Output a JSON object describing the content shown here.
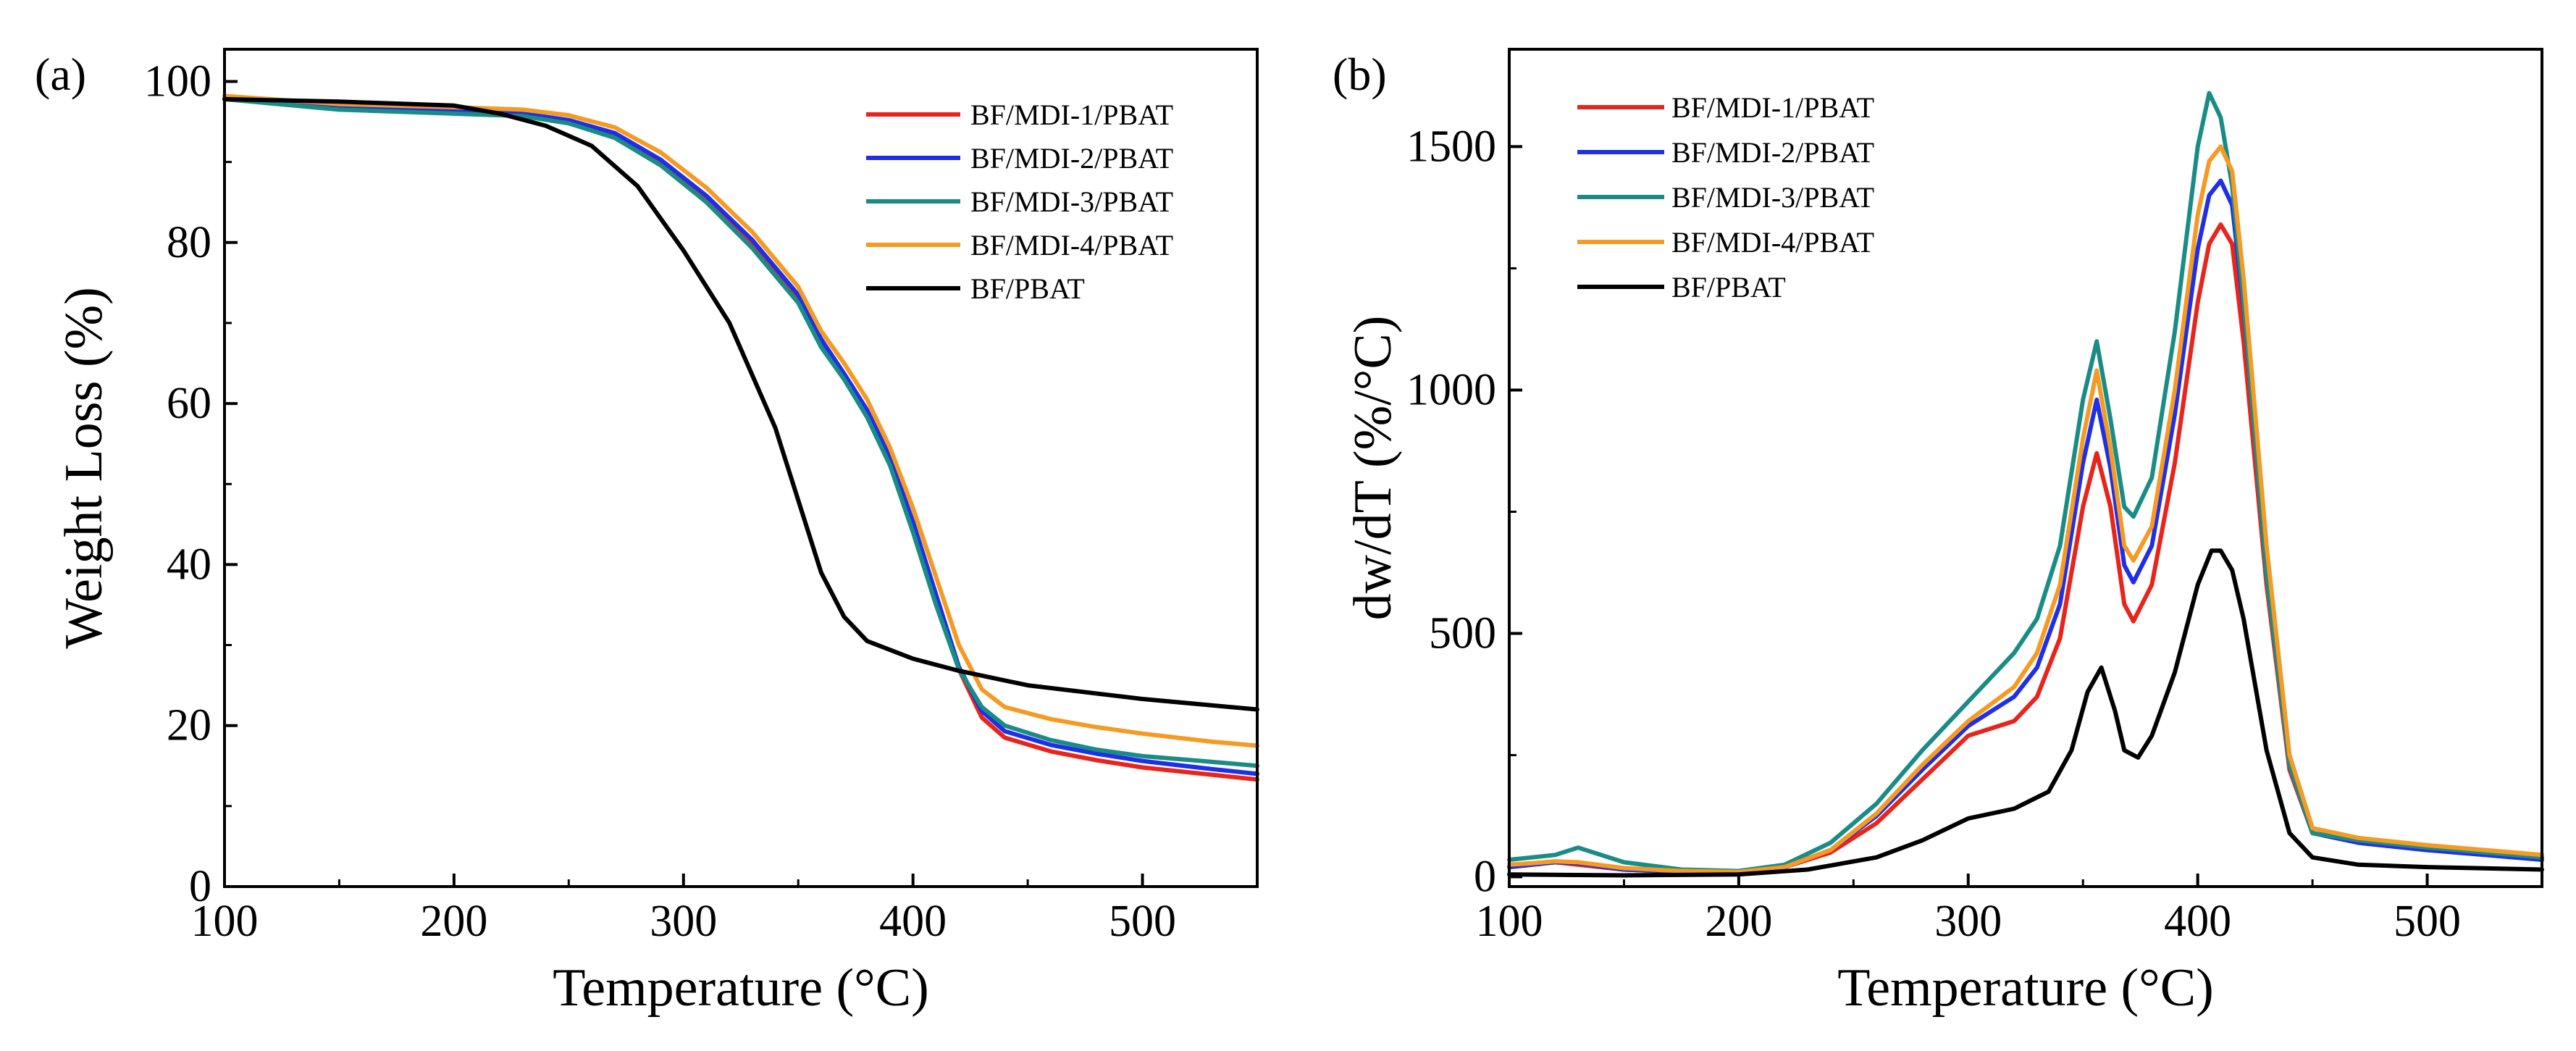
{
  "figure": {
    "description_free": true
  },
  "chart_data": [
    {
      "type": "line",
      "panel_label": "(a)",
      "xlabel": "Temperature (°C)",
      "ylabel": "Weight  Loss (%)",
      "xlim": [
        100,
        550
      ],
      "ylim": [
        0,
        104
      ],
      "xticks": [
        100,
        200,
        300,
        400,
        500
      ],
      "yticks": [
        0,
        20,
        40,
        60,
        80,
        100
      ],
      "legend_position": "top-right",
      "series": [
        {
          "name": "BF/MDI-1/PBAT",
          "color": "#e8241b",
          "x": [
            100,
            150,
            200,
            230,
            250,
            270,
            290,
            310,
            330,
            350,
            360,
            370,
            380,
            390,
            400,
            410,
            420,
            430,
            440,
            460,
            480,
            500,
            530,
            550
          ],
          "y": [
            97.8,
            96.8,
            96.3,
            96.0,
            95.0,
            93.3,
            90.0,
            85.5,
            80.0,
            73.0,
            67.5,
            63.5,
            59.0,
            53.0,
            45.0,
            36.0,
            27.0,
            21.0,
            18.5,
            16.8,
            15.7,
            14.8,
            13.9,
            13.3
          ]
        },
        {
          "name": "BF/MDI-2/PBAT",
          "color": "#1f2fe6",
          "x": [
            100,
            150,
            200,
            230,
            250,
            270,
            290,
            310,
            330,
            350,
            360,
            370,
            380,
            390,
            400,
            410,
            420,
            430,
            440,
            460,
            480,
            500,
            530,
            550
          ],
          "y": [
            97.8,
            96.8,
            96.3,
            96.0,
            95.2,
            93.6,
            90.3,
            85.8,
            80.3,
            73.5,
            68.0,
            63.7,
            59.2,
            53.3,
            45.3,
            36.3,
            27.3,
            21.8,
            19.3,
            17.6,
            16.5,
            15.6,
            14.6,
            14.0
          ]
        },
        {
          "name": "BF/MDI-3/PBAT",
          "color": "#1a8c86",
          "x": [
            100,
            150,
            200,
            230,
            250,
            270,
            290,
            310,
            330,
            350,
            360,
            370,
            380,
            390,
            400,
            410,
            420,
            430,
            440,
            460,
            480,
            500,
            530,
            550
          ],
          "y": [
            97.8,
            96.5,
            96.0,
            95.7,
            94.8,
            93.0,
            89.6,
            85.0,
            79.3,
            72.5,
            67.0,
            63.0,
            58.3,
            52.3,
            44.0,
            35.0,
            27.0,
            22.3,
            20.0,
            18.2,
            17.0,
            16.2,
            15.5,
            15.0
          ]
        },
        {
          "name": "BF/MDI-4/PBAT",
          "color": "#f59a23",
          "x": [
            100,
            150,
            200,
            230,
            250,
            270,
            290,
            310,
            330,
            350,
            360,
            370,
            380,
            390,
            400,
            410,
            420,
            430,
            440,
            460,
            480,
            500,
            530,
            550
          ],
          "y": [
            98.2,
            97.2,
            96.8,
            96.5,
            95.8,
            94.3,
            91.2,
            86.8,
            81.3,
            74.5,
            69.0,
            65.0,
            60.5,
            54.5,
            47.0,
            38.5,
            30.0,
            24.5,
            22.3,
            20.8,
            19.8,
            19.0,
            18.0,
            17.5
          ]
        },
        {
          "name": "BF/PBAT",
          "color": "#000000",
          "x": [
            100,
            150,
            200,
            220,
            240,
            260,
            280,
            300,
            320,
            340,
            350,
            360,
            370,
            380,
            400,
            420,
            450,
            500,
            550
          ],
          "y": [
            97.8,
            97.5,
            97.0,
            96.0,
            94.5,
            92.0,
            87.0,
            79.0,
            70.0,
            57.0,
            48.0,
            39.0,
            33.5,
            30.5,
            28.3,
            26.8,
            25.0,
            23.3,
            22.0
          ]
        }
      ]
    },
    {
      "type": "line",
      "panel_label": "(b)",
      "xlabel": "Temperature (°C)",
      "ylabel": "dw/dT (%/°C)",
      "xlim": [
        100,
        550
      ],
      "ylim": [
        -20,
        1700
      ],
      "xticks": [
        100,
        200,
        300,
        400,
        500
      ],
      "yticks": [
        0,
        500,
        1000,
        1500
      ],
      "legend_position": "top-left",
      "series": [
        {
          "name": "BF/MDI-1/PBAT",
          "color": "#e8241b",
          "x": [
            100,
            110,
            120,
            130,
            150,
            175,
            200,
            220,
            240,
            260,
            280,
            300,
            320,
            330,
            340,
            350,
            356,
            362,
            368,
            372,
            380,
            390,
            400,
            405,
            410,
            415,
            420,
            430,
            440,
            450,
            470,
            500,
            550
          ],
          "y": [
            20,
            25,
            30,
            25,
            15,
            10,
            10,
            20,
            50,
            110,
            200,
            290,
            320,
            370,
            490,
            760,
            870,
            760,
            560,
            525,
            600,
            850,
            1180,
            1300,
            1340,
            1300,
            1100,
            600,
            220,
            90,
            70,
            55,
            40
          ]
        },
        {
          "name": "BF/MDI-2/PBAT",
          "color": "#1f2fe6",
          "x": [
            100,
            110,
            120,
            130,
            150,
            175,
            200,
            220,
            240,
            260,
            280,
            300,
            320,
            330,
            340,
            350,
            356,
            362,
            368,
            372,
            380,
            390,
            400,
            405,
            410,
            415,
            420,
            430,
            440,
            450,
            470,
            500,
            550
          ],
          "y": [
            20,
            25,
            30,
            28,
            15,
            10,
            10,
            20,
            55,
            125,
            220,
            310,
            370,
            430,
            560,
            850,
            980,
            840,
            640,
            605,
            680,
            950,
            1290,
            1400,
            1430,
            1380,
            1170,
            640,
            230,
            90,
            70,
            55,
            35
          ]
        },
        {
          "name": "BF/MDI-3/PBAT",
          "color": "#1a8c86",
          "x": [
            100,
            110,
            120,
            130,
            150,
            175,
            200,
            220,
            240,
            260,
            280,
            300,
            320,
            330,
            340,
            350,
            356,
            362,
            368,
            372,
            380,
            390,
            400,
            405,
            410,
            415,
            420,
            430,
            440,
            450,
            470,
            500,
            550
          ],
          "y": [
            35,
            40,
            45,
            60,
            30,
            15,
            12,
            25,
            70,
            150,
            260,
            360,
            460,
            530,
            680,
            980,
            1100,
            940,
            760,
            740,
            820,
            1120,
            1500,
            1610,
            1560,
            1420,
            1180,
            620,
            230,
            90,
            75,
            60,
            40
          ]
        },
        {
          "name": "BF/MDI-4/PBAT",
          "color": "#f59a23",
          "x": [
            100,
            110,
            120,
            130,
            150,
            175,
            200,
            220,
            240,
            260,
            280,
            300,
            320,
            330,
            340,
            350,
            356,
            362,
            368,
            372,
            380,
            390,
            400,
            405,
            410,
            415,
            420,
            430,
            440,
            450,
            470,
            500,
            550
          ],
          "y": [
            25,
            28,
            32,
            30,
            18,
            12,
            10,
            20,
            55,
            130,
            230,
            320,
            390,
            460,
            600,
            900,
            1040,
            880,
            680,
            650,
            720,
            1000,
            1360,
            1470,
            1500,
            1450,
            1230,
            680,
            250,
            100,
            80,
            65,
            45
          ]
        },
        {
          "name": "BF/PBAT",
          "color": "#000000",
          "x": [
            100,
            150,
            200,
            230,
            260,
            280,
            300,
            320,
            335,
            345,
            352,
            358,
            364,
            368,
            374,
            380,
            390,
            400,
            406,
            410,
            415,
            420,
            430,
            440,
            450,
            470,
            500,
            550
          ],
          "y": [
            5,
            3,
            5,
            15,
            40,
            75,
            120,
            140,
            175,
            260,
            380,
            430,
            340,
            260,
            245,
            290,
            420,
            600,
            670,
            670,
            630,
            530,
            260,
            90,
            40,
            25,
            20,
            15
          ]
        }
      ]
    }
  ]
}
